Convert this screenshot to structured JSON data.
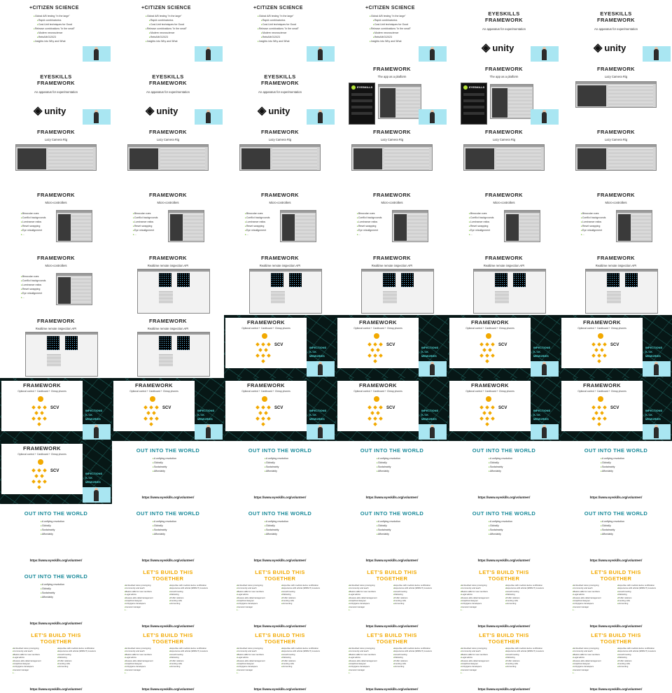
{
  "citizen": {
    "title": "+CITIZEN SCIENCE",
    "bullets": [
      "Global A/B testing \"in the large\"",
      "Rapid combinatorics",
      "Cost-Unit techniques for Good",
      "Release combinations \"in the small\"",
      "Modern neuroscience",
      "Refs/IM/G/2023",
      "Insights into Why and What"
    ]
  },
  "eyeskills": {
    "title_line1": "EYESKILLS",
    "title_line2": "FRAMEWORK",
    "subtitle": "An apparatus for experimentation",
    "unity": "unity"
  },
  "framework": {
    "title": "FRAMEWORK"
  },
  "platform": {
    "subtitle": "The app as a platform",
    "app_name": "EYESKILLS"
  },
  "lazy": {
    "subtitle": "Lazy Camera Rig"
  },
  "micro": {
    "subtitle": "Micro-controllers",
    "bullets": [
      "Binocular cues",
      "Conflict backgrounds",
      "Luminance ratios",
      "Reset swapping",
      "Eye misalignment",
      "..."
    ]
  },
  "realtime": {
    "subtitle": "Realtime remote inspection API"
  },
  "cardboard": {
    "subtitle": "Optional control + Cardboard + Cheap phones",
    "scv": "SCV",
    "side": [
      "INFECTIONS",
      "K.T.K",
      "MEMORIES"
    ]
  },
  "world": {
    "title": "OUT INTO THE WORLD",
    "bullets": [
      "A unifying revolution",
      "Globally",
      "Sustainably",
      "Affordably"
    ],
    "url": "https://www.eyeskills.org/volunteer/"
  },
  "build": {
    "title_line1": "LET'S BUILD THIS",
    "title_line2": "TOGETHER",
    "col1": [
      "Embedded vision prototyping",
      "Community and teach",
      "Basics skills for new members",
      "Legal advice",
      "Reason-able data/management",
      "Graphical designer",
      "Unity/game developers",
      "General manager",
      "..."
    ],
    "col2": [
      "Expertise with medical device certification",
      "Experience with ethical (IMPACT) investors",
      "Growth tooling",
      "Marketing",
      "Public relations",
      "Funding mills",
      "Accounting"
    ],
    "url": "https://www.eyeskills.org/volunteer/"
  },
  "colors": {
    "world_title": "#1a8a9a",
    "build_title": "#f2a900",
    "bullet": "#7bbf3a"
  }
}
